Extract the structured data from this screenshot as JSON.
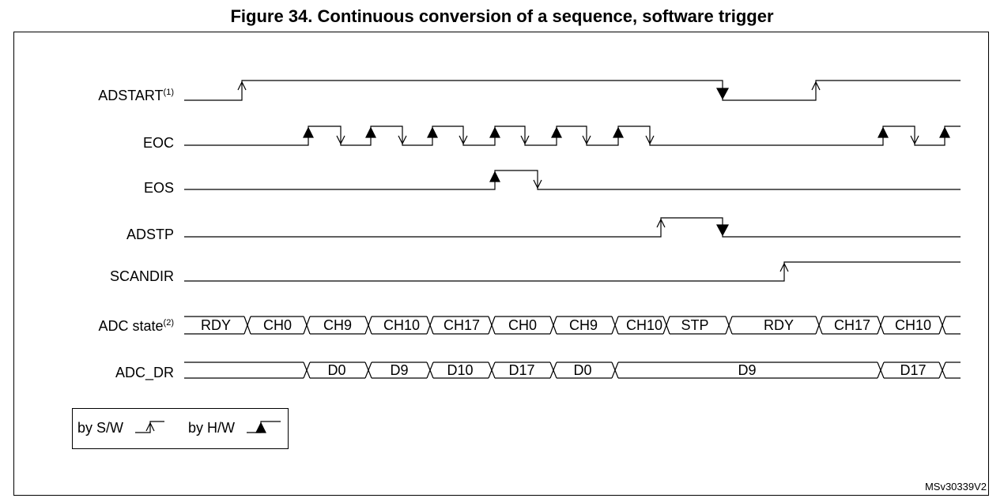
{
  "figure": {
    "title": "Figure 34. Continuous conversion of a sequence, software trigger",
    "reference": "MSv30339V2"
  },
  "signals": [
    {
      "name": "ADSTART",
      "sup": "(1)"
    },
    {
      "name": "EOC",
      "sup": ""
    },
    {
      "name": "EOS",
      "sup": ""
    },
    {
      "name": "ADSTP",
      "sup": ""
    },
    {
      "name": "SCANDIR",
      "sup": ""
    },
    {
      "name": "ADC state",
      "sup": "(2)"
    },
    {
      "name": "ADC_DR",
      "sup": ""
    }
  ],
  "adc_state": [
    "RDY",
    "CH0",
    "CH9",
    "CH10",
    "CH17",
    "CH0",
    "CH9",
    "CH10",
    "STP",
    "RDY",
    "CH17",
    "CH10"
  ],
  "adc_dr": [
    "D0",
    "D9",
    "D10",
    "D17",
    "D0",
    "D9",
    "D17"
  ],
  "legend": {
    "sw": "by S/W",
    "hw": "by H/W"
  }
}
